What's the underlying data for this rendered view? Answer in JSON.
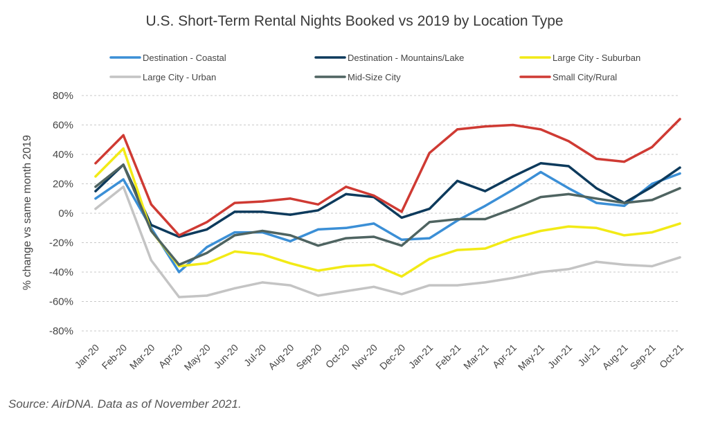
{
  "chart_data": {
    "type": "line",
    "title": "U.S. Short-Term Rental Nights Booked vs 2019 by Location Type",
    "ylabel": "% change vs same month 2019",
    "xlabel": "",
    "ylim": [
      -80,
      80
    ],
    "yticks": [
      "80%",
      "60%",
      "40%",
      "20%",
      "0%",
      "-20%",
      "-40%",
      "-60%",
      "-80%"
    ],
    "ytick_values": [
      80,
      60,
      40,
      20,
      0,
      -20,
      -40,
      -60,
      -80
    ],
    "grid": true,
    "legend_position": "top",
    "categories": [
      "Jan-20",
      "Feb-20",
      "Mar-20",
      "Apr-20",
      "May-20",
      "Jun-20",
      "Jul-20",
      "Aug-20",
      "Sep-20",
      "Oct-20",
      "Nov-20",
      "Dec-20",
      "Jan-21",
      "Feb-21",
      "Mar-21",
      "Apr-21",
      "May-21",
      "Jun-21",
      "Jul-21",
      "Aug-21",
      "Sep-21",
      "Oct-21"
    ],
    "series": [
      {
        "name": "Destination - Coastal",
        "color": "#3b8fd6",
        "values": [
          10,
          23,
          -10,
          -40,
          -23,
          -13,
          -13,
          -19,
          -11,
          -10,
          -7,
          -18,
          -17,
          -5,
          5,
          16,
          28,
          17,
          7,
          5,
          20,
          27
        ]
      },
      {
        "name": "Destination - Mountains/Lake",
        "color": "#0d3a5c",
        "values": [
          15,
          33,
          -8,
          -16,
          -11,
          1,
          1,
          -1,
          2,
          13,
          11,
          -3,
          3,
          22,
          15,
          25,
          34,
          32,
          17,
          7,
          18,
          31
        ]
      },
      {
        "name": "Large City - Suburban",
        "color": "#f2ea16",
        "values": [
          25,
          44,
          -12,
          -36,
          -34,
          -26,
          -28,
          -34,
          -39,
          -36,
          -35,
          -43,
          -31,
          -25,
          -24,
          -17,
          -12,
          -9,
          -10,
          -15,
          -13,
          -7
        ]
      },
      {
        "name": "Large City - Urban",
        "color": "#c4c4c4",
        "values": [
          3,
          18,
          -32,
          -57,
          -56,
          -51,
          -47,
          -49,
          -56,
          -53,
          -50,
          -55,
          -49,
          -49,
          -47,
          -44,
          -40,
          -38,
          -33,
          -35,
          -36,
          -30
        ]
      },
      {
        "name": "Mid-Size City",
        "color": "#4f6461",
        "values": [
          18,
          33,
          -12,
          -35,
          -27,
          -15,
          -12,
          -15,
          -22,
          -17,
          -16,
          -22,
          -6,
          -4,
          -4,
          3,
          11,
          13,
          10,
          7,
          9,
          17
        ]
      },
      {
        "name": "Small City/Rural",
        "color": "#cf3a33",
        "values": [
          34,
          53,
          6,
          -15,
          -6,
          7,
          8,
          10,
          6,
          18,
          12,
          1,
          41,
          57,
          59,
          60,
          57,
          49,
          37,
          35,
          45,
          64
        ]
      }
    ]
  },
  "source": "Source: AirDNA. Data as of November 2021."
}
